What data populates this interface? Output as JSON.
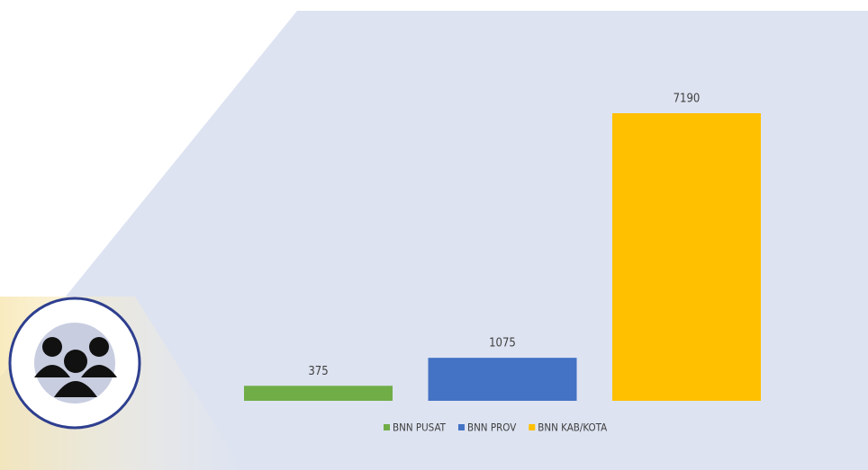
{
  "chart_data": {
    "type": "bar",
    "categories": [
      null
    ],
    "series": [
      {
        "name": "BNN PUSAT",
        "color": "#70ad47",
        "values": [
          375
        ]
      },
      {
        "name": "BNN PROV",
        "color": "#4472c4",
        "values": [
          1075
        ]
      },
      {
        "name": "BNN KAB/KOTA",
        "color": "#ffc000",
        "values": [
          7190
        ]
      }
    ],
    "legend": "bottom"
  }
}
